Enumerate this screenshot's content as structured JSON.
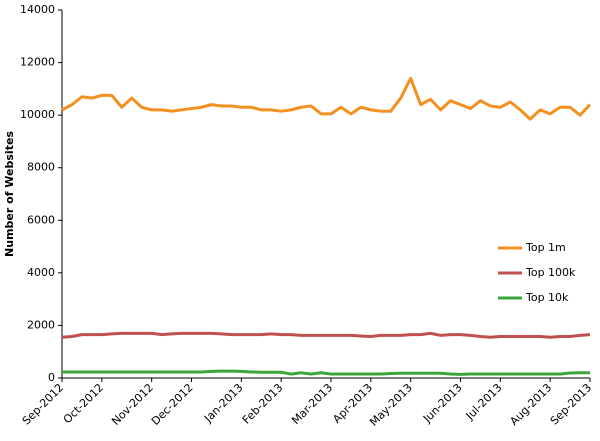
{
  "chart_data": {
    "type": "line",
    "y_label": "Number of Websites",
    "categories": [
      "Sep-2012",
      null,
      null,
      null,
      "Oct-2012",
      null,
      null,
      null,
      null,
      "Nov-2012",
      null,
      null,
      null,
      "Dec-2012",
      null,
      null,
      null,
      null,
      "Jan-2013",
      null,
      null,
      null,
      "Feb-2013",
      null,
      null,
      null,
      null,
      "Mar-2013",
      null,
      null,
      null,
      "Apr-2013",
      null,
      null,
      null,
      "May-2013",
      null,
      null,
      null,
      null,
      "Jun-2013",
      null,
      null,
      null,
      "Jul-2013",
      null,
      null,
      null,
      null,
      "Aug-2013",
      null,
      null,
      null,
      "Sep-2013"
    ],
    "series": [
      {
        "name": "Top 1m",
        "color": "#f39020",
        "values": [
          10200,
          10400,
          10700,
          10650,
          10750,
          10750,
          10300,
          10650,
          10300,
          10200,
          10200,
          10150,
          10200,
          10250,
          10300,
          10400,
          10350,
          10350,
          10300,
          10300,
          10200,
          10200,
          10150,
          10200,
          10300,
          10350,
          10050,
          10050,
          10300,
          10050,
          10300,
          10200,
          10150,
          10150,
          10650,
          11400,
          10400,
          10600,
          10200,
          10550,
          10400,
          10250,
          10550,
          10350,
          10300,
          10500,
          10200,
          9850,
          10200,
          10050,
          10300,
          10300,
          10000,
          10400
        ]
      },
      {
        "name": "Top 100k",
        "color": "#c0504d",
        "values": [
          1550,
          1580,
          1650,
          1650,
          1650,
          1680,
          1700,
          1700,
          1700,
          1700,
          1650,
          1680,
          1700,
          1700,
          1700,
          1700,
          1680,
          1650,
          1650,
          1650,
          1650,
          1680,
          1650,
          1650,
          1620,
          1620,
          1620,
          1620,
          1620,
          1620,
          1600,
          1580,
          1620,
          1620,
          1620,
          1650,
          1650,
          1700,
          1620,
          1650,
          1650,
          1620,
          1580,
          1550,
          1580,
          1580,
          1580,
          1580,
          1580,
          1550,
          1580,
          1580,
          1620,
          1650
        ]
      },
      {
        "name": "Top 10k",
        "color": "#3aa53a",
        "values": [
          230,
          230,
          230,
          230,
          230,
          230,
          230,
          230,
          230,
          230,
          230,
          230,
          230,
          230,
          230,
          250,
          260,
          260,
          250,
          230,
          220,
          220,
          220,
          150,
          200,
          150,
          200,
          150,
          150,
          150,
          150,
          150,
          150,
          170,
          180,
          180,
          180,
          180,
          180,
          150,
          140,
          150,
          150,
          150,
          150,
          150,
          150,
          150,
          150,
          150,
          150,
          190,
          200,
          200
        ]
      }
    ],
    "ylim": [
      0,
      14000
    ],
    "yticks": [
      0,
      2000,
      4000,
      6000,
      8000,
      10000,
      12000,
      14000
    ],
    "grid": false,
    "legend": "right"
  }
}
